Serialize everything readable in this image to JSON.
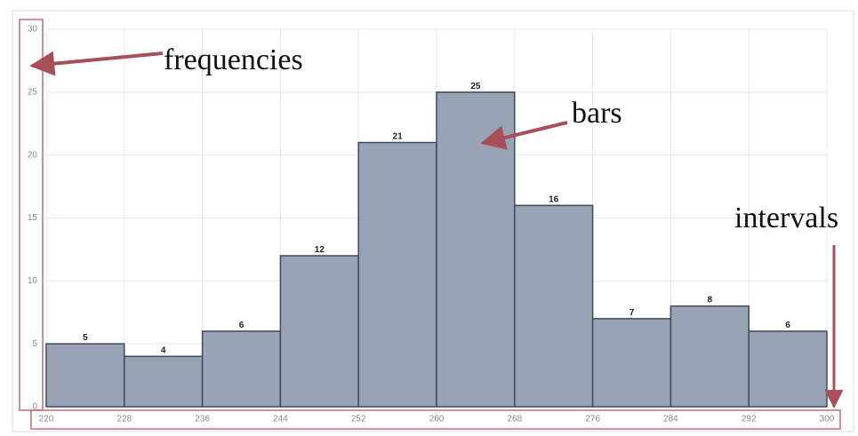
{
  "chart_data": {
    "type": "histogram",
    "bins": [
      220,
      228,
      236,
      244,
      252,
      260,
      268,
      276,
      284,
      292,
      300
    ],
    "values": [
      5,
      4,
      6,
      12,
      21,
      25,
      16,
      7,
      8,
      6
    ],
    "color": "#98a3b3",
    "edge_color": "#3d4a5c",
    "xlim": [
      220,
      300
    ],
    "xticks": [
      220,
      228,
      236,
      244,
      252,
      260,
      268,
      276,
      284,
      292,
      300
    ],
    "ylim": [
      0,
      30
    ],
    "yticks": [
      0,
      5,
      10,
      15,
      20,
      25,
      30
    ],
    "grid": true,
    "annotations": [
      "frequencies",
      "bars",
      "intervals"
    ]
  }
}
